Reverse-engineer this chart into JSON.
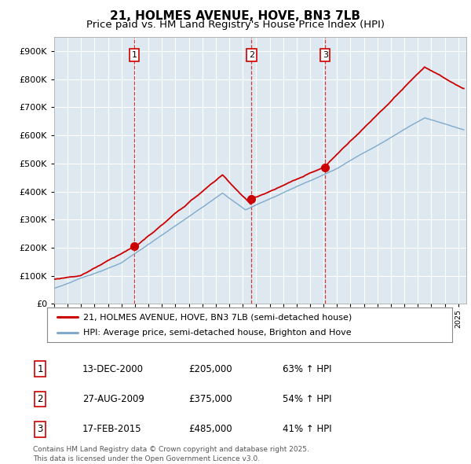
{
  "title": "21, HOLMES AVENUE, HOVE, BN3 7LB",
  "subtitle": "Price paid vs. HM Land Registry's House Price Index (HPI)",
  "ylim": [
    0,
    950000
  ],
  "yticks": [
    0,
    100000,
    200000,
    300000,
    400000,
    500000,
    600000,
    700000,
    800000,
    900000
  ],
  "ytick_labels": [
    "£0",
    "£100K",
    "£200K",
    "£300K",
    "£400K",
    "£500K",
    "£600K",
    "£700K",
    "£800K",
    "£900K"
  ],
  "sale_dates": [
    2000.95,
    2009.65,
    2015.12
  ],
  "sale_prices": [
    205000,
    375000,
    485000
  ],
  "sale_labels": [
    "1",
    "2",
    "3"
  ],
  "sale_info": [
    {
      "num": "1",
      "date": "13-DEC-2000",
      "price": "£205,000",
      "hpi": "63% ↑ HPI"
    },
    {
      "num": "2",
      "date": "27-AUG-2009",
      "price": "£375,000",
      "hpi": "54% ↑ HPI"
    },
    {
      "num": "3",
      "date": "17-FEB-2015",
      "price": "£485,000",
      "hpi": "41% ↑ HPI"
    }
  ],
  "legend_line1": "21, HOLMES AVENUE, HOVE, BN3 7LB (semi-detached house)",
  "legend_line2": "HPI: Average price, semi-detached house, Brighton and Hove",
  "footnote": "Contains HM Land Registry data © Crown copyright and database right 2025.\nThis data is licensed under the Open Government Licence v3.0.",
  "line_color_red": "#cc0000",
  "line_color_blue": "#7faacc",
  "bg_chart": "#dde8f0",
  "background_color": "#ffffff",
  "grid_color": "#ffffff",
  "title_fontsize": 11,
  "subtitle_fontsize": 9.5
}
